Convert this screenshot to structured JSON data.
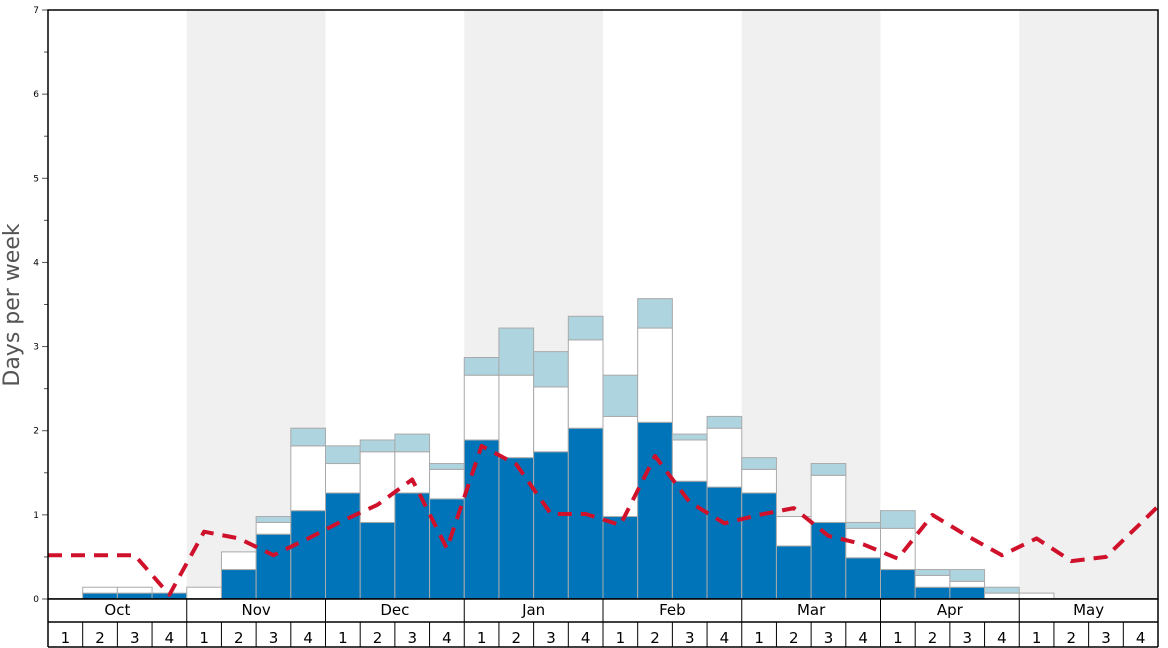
{
  "chart_data": {
    "type": "bar",
    "ylabel": "Days per week",
    "ylim": [
      0,
      7
    ],
    "yticks": [
      0,
      1,
      2,
      3,
      4,
      5,
      6,
      7
    ],
    "months": [
      "Oct",
      "Nov",
      "Dec",
      "Jan",
      "Feb",
      "Mar",
      "Apr",
      "May"
    ],
    "week_labels": [
      "1",
      "2",
      "3",
      "4"
    ],
    "shaded_months": [
      "Nov",
      "Jan",
      "Mar",
      "May"
    ],
    "colors": {
      "bottom": "#0074b8",
      "middle": "#ffffff",
      "top": "#aed4e0",
      "line": "#d0112b",
      "shade": "#f0f0f0",
      "bar_edge": "#aaaaaa"
    },
    "series": [
      {
        "values": [
          0,
          0.07,
          0.07,
          0.07,
          0,
          0.35,
          0.77,
          1.05,
          1.26,
          0.91,
          1.26,
          1.19,
          1.89,
          1.68,
          1.75,
          2.03,
          0.98,
          2.1,
          1.4,
          1.33,
          1.26,
          0.63,
          0.91,
          0.49,
          0.35,
          0.14,
          0.14,
          0,
          0,
          0,
          0,
          0
        ]
      },
      {
        "values": [
          0,
          0.07,
          0.07,
          0,
          0.14,
          0.21,
          0.14,
          0.77,
          0.35,
          0.84,
          0.49,
          0.35,
          0.77,
          0.98,
          0.77,
          1.05,
          1.19,
          1.12,
          0.49,
          0.7,
          0.28,
          0.35,
          0.56,
          0.35,
          0.49,
          0.14,
          0.07,
          0.07,
          0.07,
          0,
          0,
          0
        ]
      },
      {
        "values": [
          0,
          0,
          0,
          0,
          0,
          0,
          0.07,
          0.21,
          0.21,
          0.14,
          0.21,
          0.07,
          0.21,
          0.56,
          0.42,
          0.28,
          0.49,
          0.35,
          0.07,
          0.14,
          0.14,
          0,
          0.14,
          0.07,
          0.21,
          0.07,
          0.14,
          0.07,
          0,
          0,
          0,
          0
        ]
      }
    ],
    "line": {
      "style": "dashed",
      "values": [
        0.52,
        0.52,
        0.52,
        0.05,
        0.8,
        0.72,
        0.52,
        0.72,
        0.93,
        1.12,
        1.42,
        0.6,
        1.82,
        1.6,
        1.01,
        1.01,
        0.88,
        1.7,
        1.15,
        0.9,
        1.0,
        1.08,
        0.75,
        0.65,
        0.48,
        1.0,
        0.75,
        0.52,
        0.72,
        0.45,
        0.5,
        0.9
      ]
    }
  }
}
